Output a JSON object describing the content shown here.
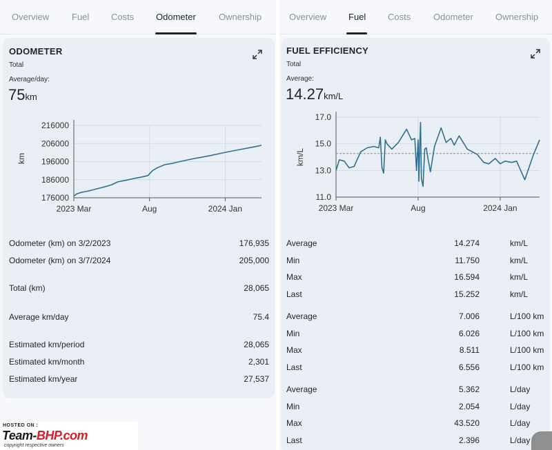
{
  "left": {
    "tabs": [
      {
        "label": "Overview",
        "active": false
      },
      {
        "label": "Fuel",
        "active": false
      },
      {
        "label": "Costs",
        "active": false
      },
      {
        "label": "Odometer",
        "active": true
      },
      {
        "label": "Ownership",
        "active": false
      }
    ],
    "card": {
      "title": "ODOMETER",
      "subtitle": "Total",
      "avg_label": "Average/day:",
      "avg_value": "75",
      "avg_unit": "km"
    },
    "chart_data": {
      "type": "line",
      "title": "Odometer",
      "ylabel": "km",
      "xlabel": "",
      "ylim": [
        176000,
        216000
      ],
      "yticks": [
        176000,
        186000,
        196000,
        206000,
        216000
      ],
      "ytick_labels": [
        "176000",
        "186000",
        "196000",
        "206000",
        "216000"
      ],
      "xlim": [
        0,
        12.4
      ],
      "xticks": [
        0,
        5,
        10
      ],
      "xtick_labels": [
        "2023 Mar",
        "Aug",
        "2024 Jan"
      ],
      "grid": true,
      "color": "#2f6f8f",
      "x": [
        0,
        0.2,
        0.5,
        1,
        1.5,
        2,
        2.5,
        2.9,
        3.2,
        3.5,
        4,
        4.5,
        4.9,
        5,
        5.2,
        5.5,
        6,
        6.5,
        7,
        7.5,
        8,
        8.5,
        9,
        9.5,
        10,
        10.5,
        11,
        11.5,
        12,
        12.4
      ],
      "y": [
        176935,
        178200,
        179000,
        179800,
        180900,
        182000,
        183200,
        184800,
        185300,
        185800,
        186700,
        187500,
        188300,
        189200,
        191000,
        192500,
        194300,
        195000,
        196000,
        196900,
        197800,
        198500,
        199300,
        200200,
        201100,
        201900,
        202700,
        203500,
        204300,
        205000
      ]
    },
    "stats": [
      {
        "label": "Odometer (km) on 3/2/2023",
        "value": "176,935"
      },
      {
        "label": "Odometer (km) on 3/7/2024",
        "value": "205,000"
      },
      {
        "label": "Total (km)",
        "value": "28,065"
      },
      {
        "label": "Average km/day",
        "value": "75.4"
      },
      {
        "label": "Estimated km/period",
        "value": "28,065"
      },
      {
        "label": "Estimated km/month",
        "value": "2,301"
      },
      {
        "label": "Estimated km/year",
        "value": "27,537"
      }
    ]
  },
  "right": {
    "tabs": [
      {
        "label": "Overview",
        "active": false
      },
      {
        "label": "Fuel",
        "active": true
      },
      {
        "label": "Costs",
        "active": false
      },
      {
        "label": "Odometer",
        "active": false
      },
      {
        "label": "Ownership",
        "active": false
      }
    ],
    "card": {
      "title": "FUEL EFFICIENCY",
      "subtitle": "Total",
      "avg_label": "Average:",
      "avg_value": "14.27",
      "avg_unit": "km/L"
    },
    "chart_data": {
      "type": "line",
      "title": "Fuel efficiency",
      "ylabel": "km/L",
      "xlabel": "",
      "ylim": [
        11.0,
        17.0
      ],
      "yticks": [
        11.0,
        13.0,
        15.0,
        17.0
      ],
      "ytick_labels": [
        "11.0",
        "13.0",
        "15.0",
        "17.0"
      ],
      "xlim": [
        0,
        12.4
      ],
      "xticks": [
        0,
        5,
        10
      ],
      "xtick_labels": [
        "2023 Mar",
        "Aug",
        "2024 Jan"
      ],
      "average_line": 14.274,
      "grid": true,
      "color": "#2f6f8f",
      "x": [
        0,
        0.2,
        0.5,
        0.8,
        1.1,
        1.5,
        1.9,
        2.3,
        2.6,
        2.7,
        2.8,
        2.9,
        3.0,
        3.1,
        3.4,
        3.8,
        4.3,
        4.6,
        4.8,
        4.9,
        5.0,
        5.05,
        5.1,
        5.15,
        5.2,
        5.3,
        5.4,
        5.5,
        5.6,
        5.75,
        6.0,
        6.4,
        6.7,
        7.0,
        7.2,
        7.5,
        8.0,
        8.6,
        9.0,
        9.3,
        9.7,
        10.0,
        10.3,
        10.7,
        11.0,
        11.5,
        12.0,
        12.4
      ],
      "y": [
        13.0,
        13.8,
        13.7,
        13.2,
        13.3,
        14.4,
        14.7,
        14.8,
        14.7,
        15.5,
        13.2,
        12.8,
        15.3,
        15.0,
        14.6,
        15.1,
        16.1,
        15.3,
        15.4,
        13.0,
        15.3,
        12.2,
        14.8,
        16.6,
        12.4,
        11.8,
        14.6,
        14.7,
        13.9,
        12.9,
        14.8,
        16.2,
        15.1,
        15.4,
        14.9,
        15.6,
        14.6,
        14.2,
        13.6,
        13.5,
        13.9,
        13.5,
        13.7,
        13.6,
        13.7,
        12.3,
        14.1,
        15.3
      ]
    },
    "stats": [
      {
        "label": "Average",
        "value": "14.274",
        "unit": "km/L"
      },
      {
        "label": "Min",
        "value": "11.750",
        "unit": "km/L"
      },
      {
        "label": "Max",
        "value": "16.594",
        "unit": "km/L"
      },
      {
        "label": "Last",
        "value": "15.252",
        "unit": "km/L"
      },
      {
        "label": "Average",
        "value": "7.006",
        "unit": "L/100 km"
      },
      {
        "label": "Min",
        "value": "6.026",
        "unit": "L/100 km"
      },
      {
        "label": "Max",
        "value": "8.511",
        "unit": "L/100 km"
      },
      {
        "label": "Last",
        "value": "6.556",
        "unit": "L/100 km"
      },
      {
        "label": "Average",
        "value": "5.362",
        "unit": "L/day"
      },
      {
        "label": "Min",
        "value": "2.054",
        "unit": "L/day"
      },
      {
        "label": "Max",
        "value": "43.520",
        "unit": "L/day"
      },
      {
        "label": "Last",
        "value": "2.396",
        "unit": "L/day"
      }
    ]
  },
  "watermark": {
    "hosted_on": "HOSTED ON :",
    "logo_team": "Team-",
    "logo_bhp": "BHP",
    "logo_com": ".com",
    "copyright": "copyright respective owners"
  }
}
